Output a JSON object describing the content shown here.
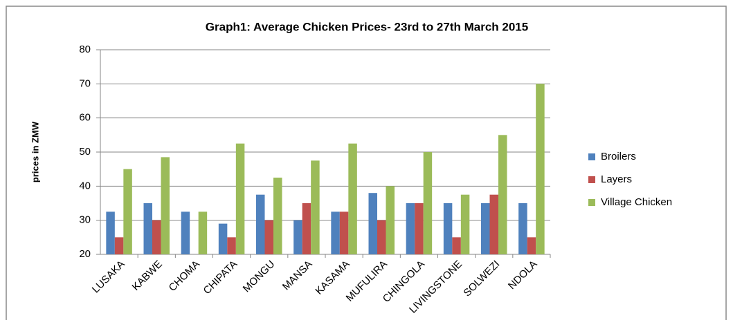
{
  "chart_data": {
    "type": "bar",
    "title": "Graph1: Average Chicken Prices- 23rd to 27th March 2015",
    "y_label": "prices in ZMW",
    "categories": [
      "LUSAKA",
      "KABWE",
      "CHOMA",
      "CHIPATA",
      "MONGU",
      "MANSA",
      "KASAMA",
      "MUFULIRA",
      "CHINGOLA",
      "LIVINGSTONE",
      "SOLWEZI",
      "NDOLA"
    ],
    "series": [
      {
        "name": "Broilers",
        "color": "#4f81bd",
        "values": [
          32.5,
          35,
          32.5,
          29,
          37.5,
          30,
          32.5,
          38,
          35,
          35,
          35,
          35
        ]
      },
      {
        "name": "Layers",
        "color": "#c0504d",
        "values": [
          25,
          30,
          null,
          25,
          30,
          35,
          32.5,
          30,
          35,
          25,
          37.5,
          25
        ]
      },
      {
        "name": "Village Chicken",
        "color": "#9bbb59",
        "values": [
          45,
          48.5,
          32.5,
          52.5,
          42.5,
          47.5,
          52.5,
          40,
          50,
          37.5,
          55,
          70
        ]
      }
    ],
    "ylim": [
      20,
      80
    ],
    "yticks": [
      20,
      30,
      40,
      50,
      60,
      70,
      80
    ],
    "grid": true,
    "legend": "right"
  }
}
